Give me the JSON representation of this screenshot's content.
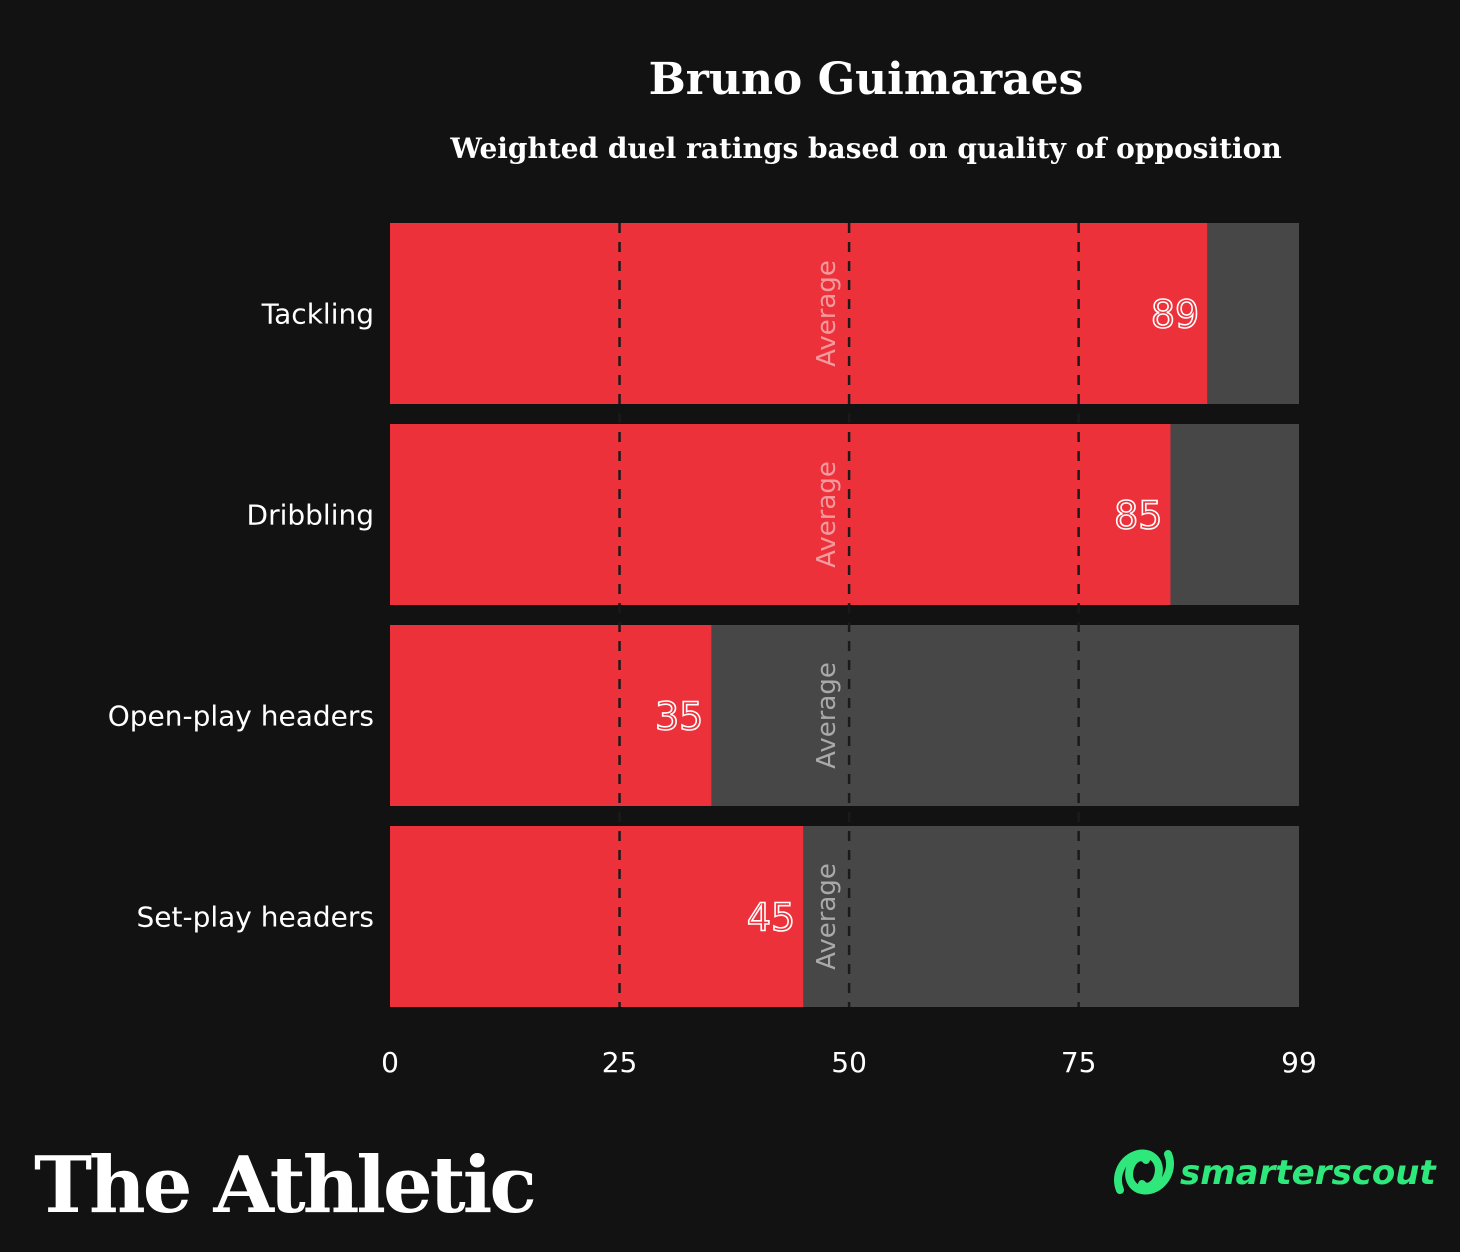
{
  "chart_data": {
    "type": "bar",
    "orientation": "horizontal",
    "title": "Bruno Guimaraes",
    "subtitle": "Weighted duel ratings based on quality of opposition",
    "categories": [
      "Tackling",
      "Dribbling",
      "Open-play headers",
      "Set-play headers"
    ],
    "values": [
      89,
      85,
      35,
      45
    ],
    "xlim": [
      0,
      99
    ],
    "xticks": [
      0,
      25,
      50,
      75,
      99
    ],
    "reference_lines": [
      25,
      50,
      75
    ],
    "average_label": "Average",
    "average_value": 50,
    "colors": {
      "bar": "#ec313a",
      "track": "#474747",
      "background": "#121212",
      "grid": "#1a1a1a"
    }
  },
  "branding": {
    "publisher": "The Athletic",
    "data_source": "smarterscout",
    "source_icon": "smarterscout-logo-icon",
    "source_color": "#2ee87c"
  }
}
